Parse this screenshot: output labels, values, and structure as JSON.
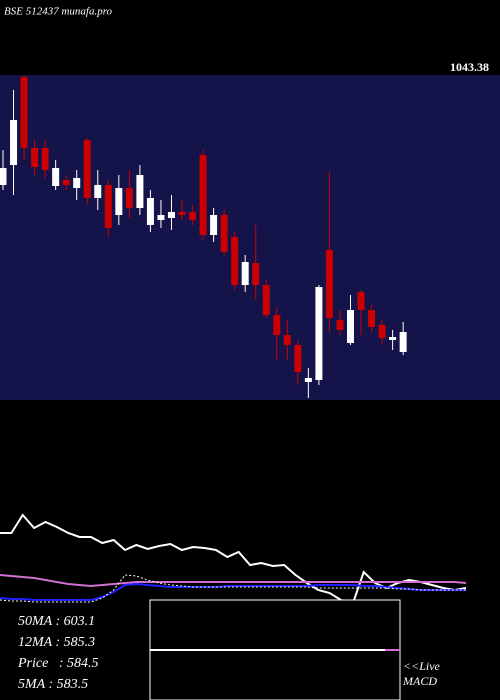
{
  "chart_data": [
    {
      "type": "candlestick",
      "title": "BSE 512437 munafa.pro",
      "price_label": "1043.38",
      "ylim": [
        470,
        1120
      ],
      "up_color": "#ffffff",
      "down_color": "#cc0000",
      "background": "#14144a",
      "candles": [
        {
          "open": 900,
          "high": 970,
          "low": 890,
          "close": 934
        },
        {
          "open": 940,
          "high": 1090,
          "low": 880,
          "close": 1030
        },
        {
          "open": 1116,
          "high": 1120,
          "low": 950,
          "close": 974
        },
        {
          "open": 974,
          "high": 990,
          "low": 920,
          "close": 936
        },
        {
          "open": 974,
          "high": 990,
          "low": 914,
          "close": 930
        },
        {
          "open": 898,
          "high": 950,
          "low": 890,
          "close": 934
        },
        {
          "open": 910,
          "high": 920,
          "low": 890,
          "close": 900
        },
        {
          "open": 894,
          "high": 930,
          "low": 870,
          "close": 914
        },
        {
          "open": 990,
          "high": 994,
          "low": 860,
          "close": 874
        },
        {
          "open": 874,
          "high": 930,
          "low": 850,
          "close": 900
        },
        {
          "open": 900,
          "high": 910,
          "low": 796,
          "close": 814
        },
        {
          "open": 840,
          "high": 920,
          "low": 820,
          "close": 894
        },
        {
          "open": 894,
          "high": 930,
          "low": 834,
          "close": 854
        },
        {
          "open": 854,
          "high": 940,
          "low": 840,
          "close": 920
        },
        {
          "open": 820,
          "high": 890,
          "low": 806,
          "close": 874
        },
        {
          "open": 830,
          "high": 870,
          "low": 814,
          "close": 840
        },
        {
          "open": 834,
          "high": 880,
          "low": 810,
          "close": 846
        },
        {
          "open": 846,
          "high": 870,
          "low": 830,
          "close": 840
        },
        {
          "open": 846,
          "high": 860,
          "low": 820,
          "close": 830
        },
        {
          "open": 960,
          "high": 970,
          "low": 790,
          "close": 800
        },
        {
          "open": 800,
          "high": 854,
          "low": 786,
          "close": 840
        },
        {
          "open": 840,
          "high": 850,
          "low": 760,
          "close": 766
        },
        {
          "open": 796,
          "high": 806,
          "low": 690,
          "close": 700
        },
        {
          "open": 700,
          "high": 760,
          "low": 686,
          "close": 746
        },
        {
          "open": 744,
          "high": 820,
          "low": 670,
          "close": 700
        },
        {
          "open": 700,
          "high": 710,
          "low": 634,
          "close": 640
        },
        {
          "open": 640,
          "high": 654,
          "low": 550,
          "close": 600
        },
        {
          "open": 600,
          "high": 630,
          "low": 550,
          "close": 580
        },
        {
          "open": 580,
          "high": 590,
          "low": 500,
          "close": 526
        },
        {
          "open": 506,
          "high": 534,
          "low": 474,
          "close": 514
        },
        {
          "open": 510,
          "high": 700,
          "low": 500,
          "close": 696
        },
        {
          "open": 770,
          "high": 926,
          "low": 606,
          "close": 634
        },
        {
          "open": 630,
          "high": 650,
          "low": 600,
          "close": 610
        },
        {
          "open": 584,
          "high": 680,
          "low": 580,
          "close": 650
        },
        {
          "open": 686,
          "high": 690,
          "low": 600,
          "close": 650
        },
        {
          "open": 650,
          "high": 660,
          "low": 606,
          "close": 616
        },
        {
          "open": 620,
          "high": 630,
          "low": 580,
          "close": 594
        },
        {
          "open": 590,
          "high": 610,
          "low": 570,
          "close": 596
        },
        {
          "open": 566,
          "high": 626,
          "low": 560,
          "close": 606
        }
      ]
    },
    {
      "type": "line",
      "xlim": [
        0,
        41
      ],
      "ylim": [
        0,
        300
      ],
      "x": [
        0,
        1,
        2,
        3,
        4,
        5,
        6,
        7,
        8,
        9,
        10,
        11,
        12,
        13,
        14,
        15,
        16,
        17,
        18,
        19,
        20,
        21,
        22,
        23,
        24,
        25,
        26,
        27,
        28,
        29,
        30,
        31,
        32,
        33,
        34,
        35,
        36,
        37,
        38,
        39,
        40,
        41
      ],
      "series": [
        {
          "color": "#ffffff",
          "dashed": false,
          "values": [
            167,
            167,
            185,
            172,
            178,
            173,
            167,
            163,
            163,
            157,
            160,
            150,
            155,
            151,
            154,
            156,
            150,
            153,
            152,
            150,
            143,
            148,
            135,
            137,
            134,
            135,
            125,
            117,
            110,
            107,
            100,
            95,
            128,
            117,
            112,
            117,
            120,
            118,
            115,
            112,
            110,
            112
          ]
        },
        {
          "color": "#d070d0",
          "dashed": false,
          "values": [
            125,
            124,
            123,
            122,
            120,
            118,
            116,
            115,
            114,
            115,
            116,
            117,
            118,
            118,
            118,
            118,
            118,
            118,
            118,
            118,
            118,
            118,
            118,
            118,
            118,
            118,
            118,
            118,
            118,
            118,
            118,
            118,
            118,
            118,
            118,
            118,
            118,
            118,
            118,
            118,
            118,
            117
          ]
        },
        {
          "color": "#2020ff",
          "dashed": false,
          "values": [
            102,
            101,
            101,
            100,
            100,
            100,
            100,
            100,
            100,
            103,
            108,
            115,
            116,
            115,
            114,
            113,
            113,
            113,
            113,
            113,
            114,
            114,
            114,
            114,
            114,
            114,
            114,
            114,
            115,
            115,
            115,
            115,
            114,
            114,
            113,
            112,
            111,
            110,
            110,
            110,
            110,
            110
          ]
        },
        {
          "color": "#ffffff",
          "dashed": true,
          "values": [
            100,
            99,
            99,
            98,
            98,
            98,
            98,
            98,
            98,
            102,
            110,
            125,
            124,
            120,
            117,
            115,
            114,
            113,
            113,
            113,
            113,
            113,
            113,
            113,
            113,
            113,
            113,
            113,
            112,
            112,
            112,
            112,
            112,
            112,
            112,
            111,
            111,
            110,
            110,
            110,
            110,
            110
          ]
        }
      ],
      "ma_labels": [
        "50MA : 603.1",
        "12MA : 585.3",
        "Price   : 584.5",
        "5MA : 583.5"
      ],
      "macd_labels": [
        "<<Live",
        "MACD"
      ]
    }
  ]
}
